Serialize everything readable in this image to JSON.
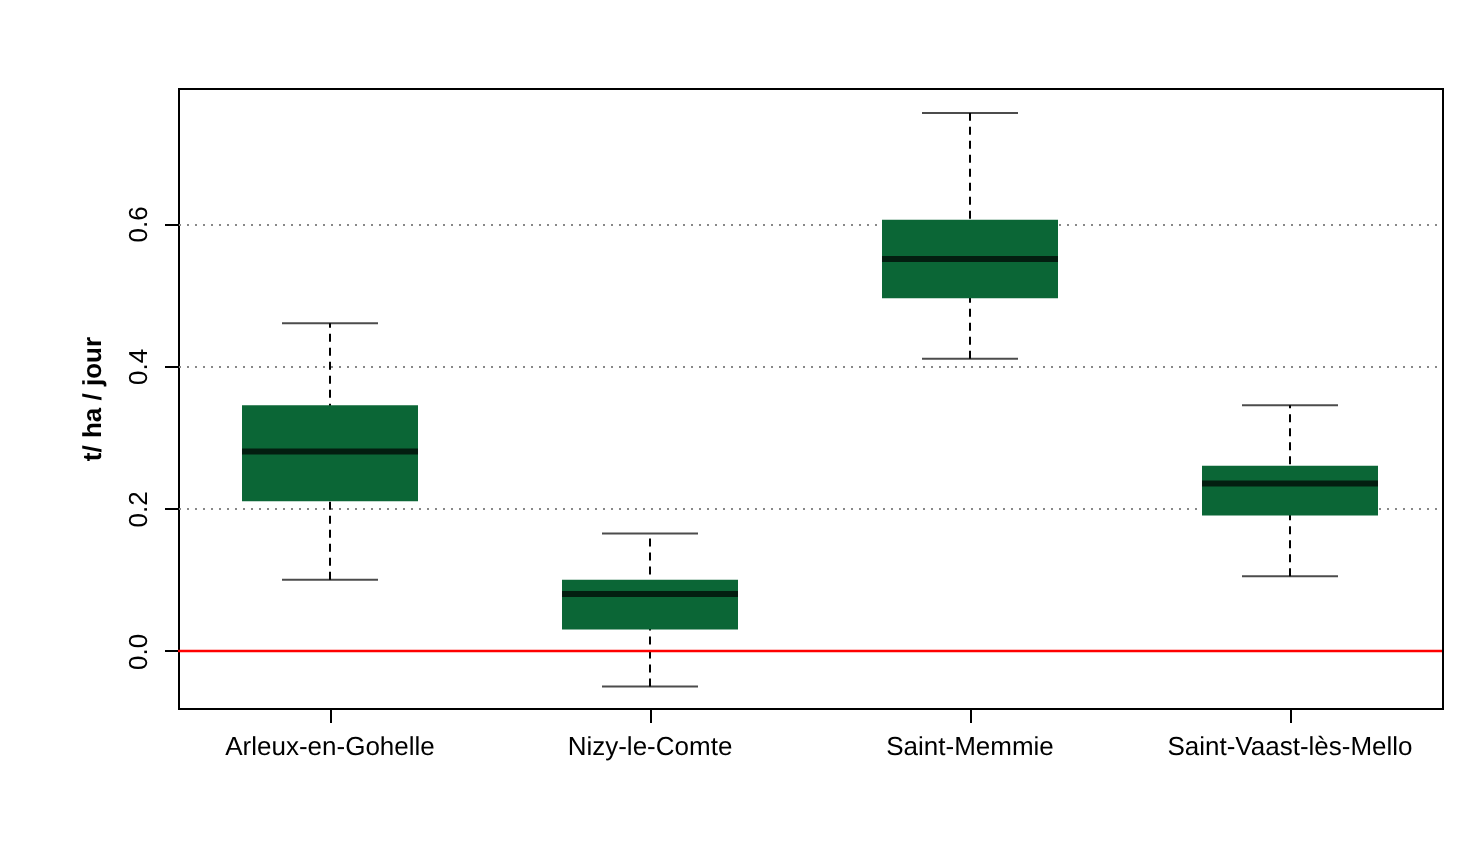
{
  "chart_data": {
    "type": "box",
    "ylabel": "t/ ha / jour",
    "categories": [
      "Arleux-en-Gohelle",
      "Nizy-le-Comte",
      "Saint-Memmie",
      "Saint-Vaast-lès-Mello"
    ],
    "series": [
      {
        "color": "#0b6636",
        "boxes": [
          {
            "low": 0.1,
            "q1": 0.21,
            "median": 0.28,
            "q3": 0.345,
            "high": 0.46
          },
          {
            "low": -0.05,
            "q1": 0.03,
            "median": 0.08,
            "q3": 0.1,
            "high": 0.165
          },
          {
            "low": 0.41,
            "q1": 0.495,
            "median": 0.55,
            "q3": 0.605,
            "high": 0.755
          },
          {
            "low": 0.105,
            "q1": 0.19,
            "median": 0.235,
            "q3": 0.26,
            "high": 0.345
          }
        ]
      }
    ],
    "ylim": [
      -0.08,
      0.79
    ],
    "yticks": [
      {
        "value": 0,
        "label": "0.0"
      },
      {
        "value": 0.2,
        "label": "0.2"
      },
      {
        "value": 0.4,
        "label": "0.4"
      },
      {
        "value": 0.6,
        "label": "0.6"
      }
    ],
    "grid": "y",
    "line_style": "dashed",
    "ref_lines": [
      {
        "axis": "y",
        "value": 0,
        "color": "#ff0000"
      }
    ]
  }
}
